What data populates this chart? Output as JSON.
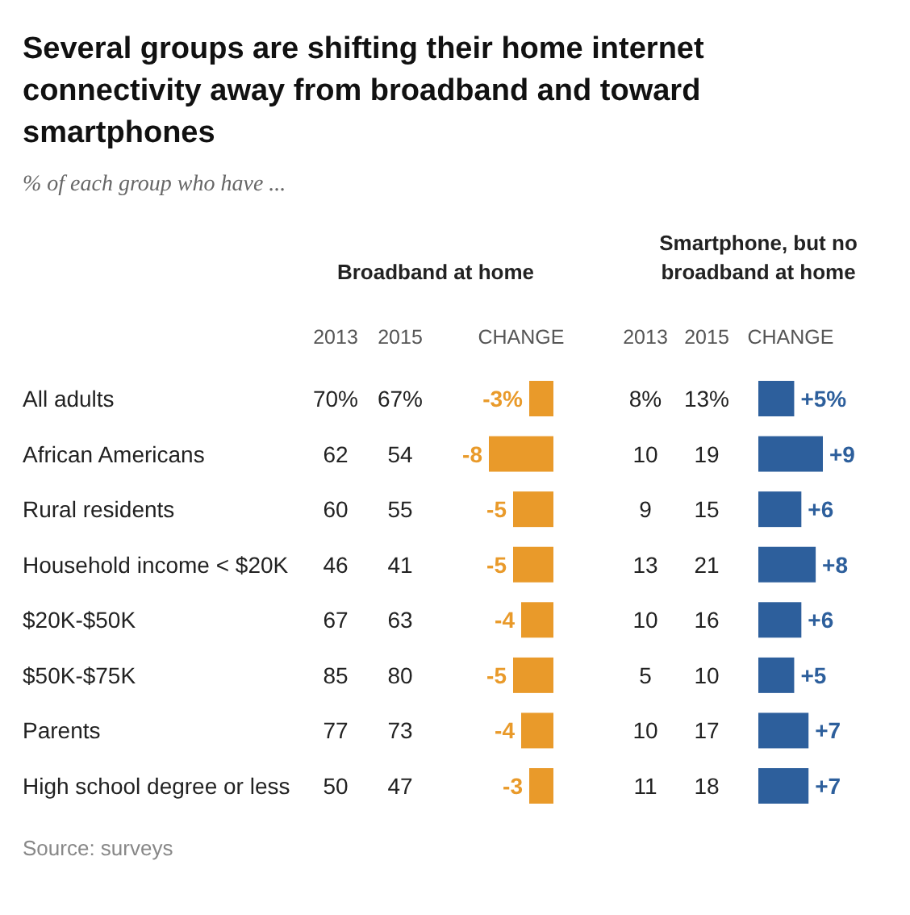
{
  "chart_data": [
    {
      "type": "other",
      "title": "Several groups are shifting their home internet connectivity away from broadband and toward smartphones",
      "subtitle": "% of each group who have ...",
      "annotations": [
        "Source: surveys"
      ]
    },
    {
      "type": "heatmap",
      "title": "Broadband at home",
      "categories": [
        "2013",
        "2015"
      ],
      "y_categories": [
        "All adults",
        "African Americans",
        "Rural residents",
        "Household income < $20K",
        "$20K-$50K",
        "$50K-$75K",
        "Parents",
        "High school degree or less"
      ],
      "cells": [
        [
          70,
          67
        ],
        [
          62,
          54
        ],
        [
          60,
          55
        ],
        [
          46,
          41
        ],
        [
          67,
          63
        ],
        [
          85,
          80
        ],
        [
          77,
          73
        ],
        [
          50,
          47
        ]
      ],
      "cell_labels": [
        [
          "70%",
          "67%"
        ],
        [
          "62",
          "54"
        ],
        [
          "60",
          "55"
        ],
        [
          "46",
          "41"
        ],
        [
          "67",
          "63"
        ],
        [
          "85",
          "80"
        ],
        [
          "77",
          "73"
        ],
        [
          "50",
          "47"
        ]
      ]
    },
    {
      "type": "bar",
      "orientation": "horizontal",
      "categories": [
        null,
        null,
        null,
        null,
        null,
        null,
        null,
        null
      ],
      "series": [
        {
          "name": "CHANGE",
          "color": "#e99a2a",
          "values": [
            -3,
            -8,
            -5,
            -5,
            -4,
            -5,
            -4,
            -3
          ],
          "value_labels": [
            "-3%",
            "-8",
            "-5",
            "-5",
            "-4",
            "-5",
            "-4",
            "-3"
          ]
        }
      ]
    },
    {
      "type": "heatmap",
      "title": "Smartphone, but no broadband at home",
      "categories": [
        "2013",
        "2015"
      ],
      "y_categories": [
        null,
        null,
        null,
        null,
        null,
        null,
        null,
        null
      ],
      "cells": [
        [
          8,
          13
        ],
        [
          10,
          19
        ],
        [
          9,
          15
        ],
        [
          13,
          21
        ],
        [
          10,
          16
        ],
        [
          5,
          10
        ],
        [
          10,
          17
        ],
        [
          11,
          18
        ]
      ],
      "cell_labels": [
        [
          "8%",
          "13%"
        ],
        [
          "10",
          "19"
        ],
        [
          "9",
          "15"
        ],
        [
          "13",
          "21"
        ],
        [
          "10",
          "16"
        ],
        [
          "5",
          "10"
        ],
        [
          "10",
          "17"
        ],
        [
          "11",
          "18"
        ]
      ]
    },
    {
      "type": "bar",
      "orientation": "horizontal",
      "categories": [
        null,
        null,
        null,
        null,
        null,
        null,
        null,
        null
      ],
      "series": [
        {
          "name": "CHANGE",
          "color": "#2d5f9c",
          "values": [
            5,
            9,
            6,
            8,
            6,
            5,
            7,
            7
          ],
          "value_labels": [
            "+5%",
            "+9",
            "+6",
            "+8",
            "+6",
            "+5",
            "+7",
            "+7"
          ]
        }
      ]
    }
  ]
}
